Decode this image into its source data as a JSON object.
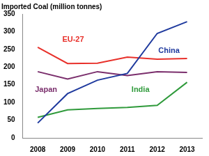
{
  "chart_data": {
    "type": "line",
    "title": "Imported Coal (million tonnes)",
    "categories": [
      "2008",
      "2009",
      "2010",
      "2011",
      "2012",
      "2013"
    ],
    "series": [
      {
        "name": "China",
        "color": "#1f3a9e",
        "values": [
          42,
          125,
          163,
          182,
          295,
          328
        ]
      },
      {
        "name": "EU-27",
        "color": "#e8302a",
        "values": [
          256,
          210,
          211,
          228,
          222,
          224
        ]
      },
      {
        "name": "Japan",
        "color": "#7a2e6c",
        "values": [
          187,
          166,
          187,
          176,
          187,
          185
        ]
      },
      {
        "name": "India",
        "color": "#2f9a3b",
        "values": [
          58,
          79,
          83,
          86,
          92,
          157
        ]
      }
    ],
    "ylim": [
      0,
      350
    ],
    "yticks": [
      0,
      50,
      100,
      150,
      200,
      250,
      300,
      350
    ],
    "grid": false
  }
}
